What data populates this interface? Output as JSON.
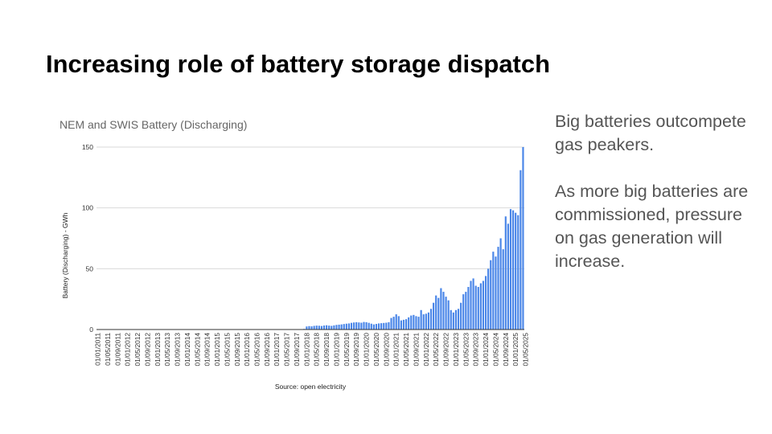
{
  "slide": {
    "title": "Increasing role of battery storage dispatch",
    "paragraphs": [
      "Big batteries outcompete gas peakers.",
      "As more big batteries are commissioned, pressure on gas generation will increase."
    ]
  },
  "chart_data": {
    "type": "bar",
    "title": "NEM and SWIS Battery (Discharging)",
    "ylabel": "Battery (Discharging) - GWh",
    "xlabel": "",
    "source": "Source: open electricity",
    "ylim": [
      0,
      150
    ],
    "yticks": [
      0,
      50,
      100,
      150
    ],
    "grid": true,
    "color": "#4a86e8",
    "x_tick_labels": [
      "01/01/2011",
      "01/05/2011",
      "01/09/2011",
      "01/01/2012",
      "01/05/2012",
      "01/09/2012",
      "01/01/2013",
      "01/05/2013",
      "01/09/2013",
      "01/01/2014",
      "01/05/2014",
      "01/09/2014",
      "01/01/2015",
      "01/05/2015",
      "01/09/2015",
      "01/01/2016",
      "01/05/2016",
      "01/09/2016",
      "01/01/2017",
      "01/05/2017",
      "01/09/2017",
      "01/01/2018",
      "01/05/2018",
      "01/09/2018",
      "01/01/2019",
      "01/05/2019",
      "01/09/2019",
      "01/01/2020",
      "01/05/2020",
      "01/09/2020",
      "01/01/2021",
      "01/05/2021",
      "01/09/2021",
      "01/01/2022",
      "01/05/2022",
      "01/09/2022",
      "01/01/2023",
      "01/05/2023",
      "01/09/2023",
      "01/01/2024",
      "01/05/2024",
      "01/09/2024",
      "01/01/2025",
      "01/05/2025"
    ],
    "series": [
      {
        "name": "Battery (Discharging)",
        "start": "2011-01",
        "frequency": "monthly",
        "values": [
          0,
          0,
          0,
          0,
          0,
          0,
          0,
          0,
          0,
          0,
          0,
          0,
          0,
          0,
          0,
          0,
          0,
          0,
          0,
          0,
          0,
          0,
          0,
          0,
          0,
          0,
          0,
          0,
          0,
          0,
          0,
          0,
          0,
          0,
          0,
          0,
          0,
          0,
          0,
          0,
          0,
          0,
          0,
          0,
          0,
          0,
          0,
          0,
          0,
          0,
          0,
          0,
          0,
          0,
          0,
          0,
          0,
          0,
          0,
          0,
          0,
          0,
          0,
          0,
          0,
          0,
          0,
          0,
          0,
          0,
          0,
          0,
          0,
          0,
          0,
          0,
          0,
          0,
          0,
          0,
          0,
          0,
          0.3,
          0.5,
          2.5,
          2.8,
          2.6,
          3.0,
          3.2,
          3.1,
          2.9,
          3.3,
          3.5,
          3.2,
          3.0,
          3.4,
          3.8,
          4.0,
          4.2,
          4.5,
          4.8,
          5.0,
          5.5,
          5.8,
          6.0,
          5.8,
          5.6,
          6.2,
          6.0,
          5.5,
          4.8,
          4.2,
          4.6,
          5.0,
          5.2,
          5.4,
          5.6,
          6.0,
          9.5,
          10.5,
          12.5,
          11.0,
          7.5,
          8.0,
          8.5,
          10.0,
          11.5,
          12.0,
          11.0,
          10.5,
          16.0,
          12.5,
          13.0,
          14.0,
          17.0,
          22.0,
          28.0,
          26.0,
          34.0,
          31.0,
          27.0,
          24.0,
          16.0,
          14.0,
          16.0,
          17.0,
          22.0,
          29.0,
          31.0,
          35.0,
          40.0,
          42.0,
          36.0,
          35.0,
          38.0,
          40.0,
          44.0,
          50.0,
          57.0,
          64.0,
          60.0,
          68.0,
          75.0,
          66.0,
          93.0,
          87.0,
          99.0,
          98.0,
          96.0,
          94.0,
          131.0,
          150.0
        ]
      }
    ]
  }
}
